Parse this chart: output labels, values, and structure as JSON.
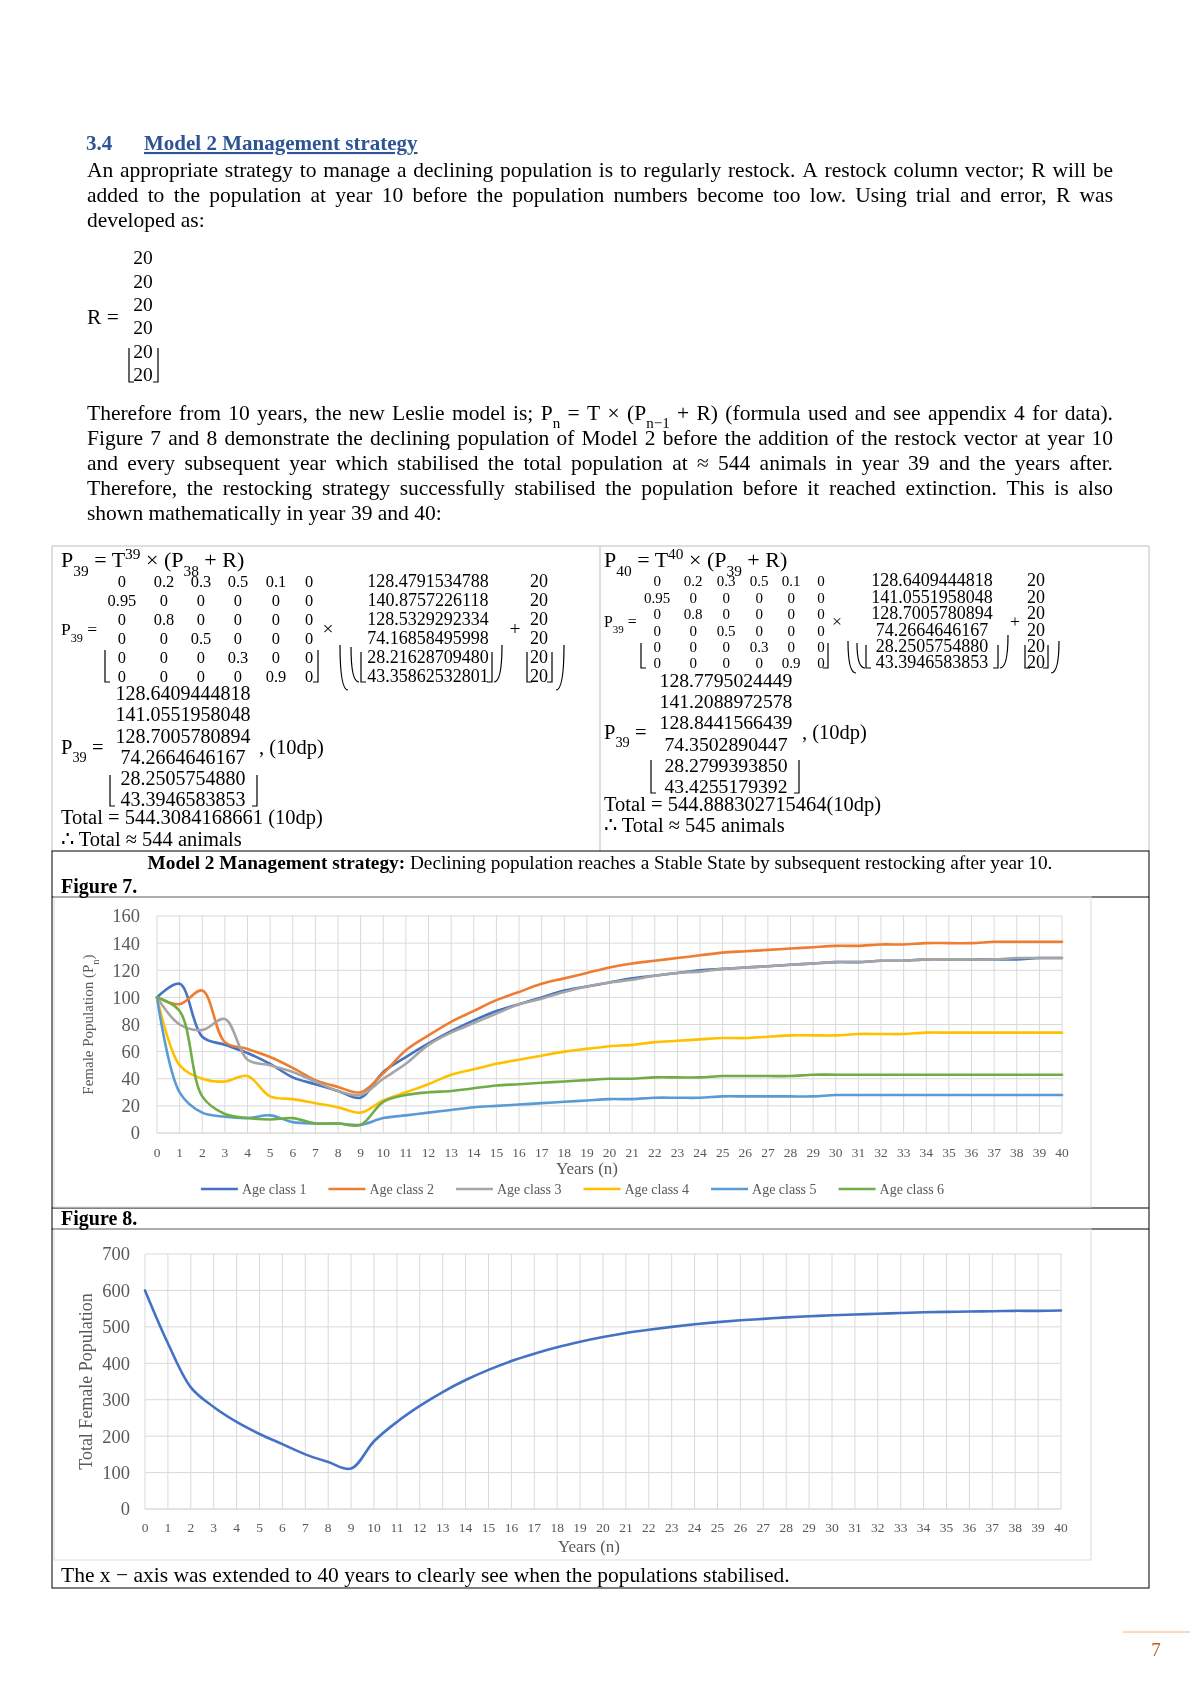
{
  "chart_data": [
    {
      "type": "line",
      "title": "Model 2 Management strategy: Declining population reaches a Stable State by subsequent restocking after year 10.",
      "subtitle": "Figure 7.",
      "xlabel": "Years (n)",
      "ylabel": "Female Population (P$_{n}$)",
      "x": [
        0,
        1,
        2,
        3,
        4,
        5,
        6,
        7,
        8,
        9,
        10,
        11,
        12,
        13,
        14,
        15,
        16,
        17,
        18,
        19,
        20,
        21,
        22,
        23,
        24,
        25,
        26,
        27,
        28,
        29,
        30,
        31,
        32,
        33,
        34,
        35,
        36,
        37,
        38,
        39,
        40
      ],
      "series": [
        {
          "name": "Age class 1",
          "color": "#4472c4",
          "values": [
            100,
            110,
            71,
            65,
            59,
            51,
            41,
            36,
            31,
            26,
            45,
            56,
            66,
            75,
            83,
            90,
            95,
            100,
            105,
            108,
            111,
            114,
            116,
            118,
            120,
            121,
            122,
            123,
            124,
            125,
            126,
            126,
            127,
            127,
            128,
            128,
            128,
            128,
            128,
            129,
            129
          ]
        },
        {
          "name": "Age class 2",
          "color": "#ed7d31",
          "values": [
            100,
            95,
            105,
            67,
            62,
            56,
            48,
            39,
            34,
            30,
            44,
            61,
            72,
            82,
            90,
            98,
            104,
            110,
            114,
            118,
            122,
            125,
            127,
            129,
            131,
            133,
            134,
            135,
            136,
            137,
            138,
            138,
            139,
            139,
            140,
            140,
            140,
            141,
            141,
            141,
            141
          ]
        },
        {
          "name": "Age class 3",
          "color": "#a5a5a5",
          "values": [
            100,
            80,
            76,
            84,
            54,
            50,
            45,
            38,
            31,
            28,
            40,
            51,
            65,
            74,
            81,
            88,
            95,
            99,
            104,
            108,
            111,
            113,
            116,
            118,
            119,
            121,
            122,
            123,
            124,
            125,
            126,
            126,
            127,
            127,
            128,
            128,
            128,
            128,
            129,
            129,
            129
          ]
        },
        {
          "name": "Age class 4",
          "color": "#ffc000",
          "values": [
            100,
            50,
            40,
            38,
            42,
            27,
            25,
            22,
            19,
            15,
            24,
            30,
            36,
            43,
            47,
            51,
            54,
            57,
            60,
            62,
            64,
            65,
            67,
            68,
            69,
            70,
            70,
            71,
            72,
            72,
            72,
            73,
            73,
            73,
            74,
            74,
            74,
            74,
            74,
            74,
            74
          ]
        },
        {
          "name": "Age class 5",
          "color": "#5b9bd5",
          "values": [
            100,
            30,
            15,
            12,
            11,
            13,
            8,
            7,
            7,
            6,
            11,
            13,
            15,
            17,
            19,
            20,
            21,
            22,
            23,
            24,
            25,
            25,
            26,
            26,
            26,
            27,
            27,
            27,
            27,
            27,
            28,
            28,
            28,
            28,
            28,
            28,
            28,
            28,
            28,
            28,
            28
          ]
        },
        {
          "name": "Age class 6",
          "color": "#70ad47",
          "values": [
            100,
            90,
            27,
            14,
            11,
            10,
            11,
            7,
            7,
            6,
            23,
            28,
            30,
            31,
            33,
            35,
            36,
            37,
            38,
            39,
            40,
            40,
            41,
            41,
            41,
            42,
            42,
            42,
            42,
            43,
            43,
            43,
            43,
            43,
            43,
            43,
            43,
            43,
            43,
            43,
            43
          ]
        }
      ],
      "xlim": [
        0,
        40
      ],
      "xticks": [
        0,
        1,
        2,
        3,
        4,
        5,
        6,
        7,
        8,
        9,
        10,
        11,
        12,
        13,
        14,
        15,
        16,
        17,
        18,
        19,
        20,
        21,
        22,
        23,
        24,
        25,
        26,
        27,
        28,
        29,
        30,
        31,
        32,
        33,
        34,
        35,
        36,
        37,
        38,
        39,
        40
      ],
      "ylim": [
        0,
        160
      ],
      "yticks": [
        0,
        20,
        40,
        60,
        80,
        100,
        120,
        140,
        160
      ],
      "grid": true,
      "legend": "bottom",
      "annotations": [
        "3.4",
        "Model 2 Management strategy",
        "An appropriate strategy to manage a declining population is to regularly restock. A restock column vector; R will be added to the population at year 10 before the population numbers become too low. Using trial and error, R was developed as:",
        "R =",
        "20",
        "20",
        "20",
        "20",
        "20",
        "20",
        "Therefore from 10 years, the new Leslie model is; P$_{n}$ = T × (P$_{n−1}$ + R) (formula used and see appendix 4 for data). Figure 7 and 8 demonstrate the declining population of Model 2 before the addition of the restock vector at year 10 and every subsequent year which stabilised the total population at ≈ 544 animals in year 39 and the years after. Therefore, the restocking strategy successfully stabilised the population before it reached extinction. This is also shown mathematically in year 39 and 40:",
        "P$_{39}$ = T$^{39}$ × (P$_{38}$ + R)",
        "P$_{39}$ =",
        "0 0.2 0.3 0.5 0.1 0",
        "0.95 0 0 0 0 0",
        "0 0.8 0 0 0 0",
        "0 0 0.5 0 0 0",
        "0 0 0 0.3 0 0",
        "0 0 0 0 0.9 0",
        "×",
        "128.4791534788",
        "140.8757226118",
        "128.5329292334",
        "74.16858495998",
        "28.21628709480",
        "43.35862532801",
        "+",
        "20",
        "20",
        "20",
        "20",
        "20",
        "20",
        "P$_{39}$ =",
        "128.6409444818",
        "141.0551958048",
        "128.7005780894",
        "74.2664646167",
        "28.2505754880",
        "43.3946583853",
        ", (10dp)",
        "Total = 544.3084168661 (10dp)",
        "∴ Total ≈ 544 animals",
        "P$_{40}$ = T$^{40}$ × (P$_{39}$ + R)",
        "P$_{39}$ =",
        "0 0.2 0.3 0.5 0.1 0",
        "0.95 0 0 0 0 0",
        "0 0.8 0 0 0 0",
        "0 0 0.5 0 0 0",
        "0 0 0 0.3 0 0",
        "0 0 0 0 0.9 0",
        "×",
        "128.6409444818",
        "141.0551958048",
        "128.7005780894",
        "74.2664646167",
        "28.2505754880",
        "43.3946583853",
        "+",
        "20",
        "20",
        "20",
        "20",
        "20",
        "20",
        "P$_{39}$ =",
        "128.7795024449",
        "141.2088972578",
        "128.8441566439",
        "74.3502890447",
        "28.2799393850",
        "43.4255179392",
        ", (10dp)",
        "Total = 544.888302715464(10dp)",
        "∴ Total ≈ 545 animals"
      ]
    },
    {
      "type": "line",
      "title": "Figure 8.",
      "xlabel": "Years (n)",
      "ylabel": "Total Female Population",
      "x": [
        0,
        1,
        2,
        3,
        4,
        5,
        6,
        7,
        8,
        9,
        10,
        11,
        12,
        13,
        14,
        15,
        16,
        17,
        18,
        19,
        20,
        21,
        22,
        23,
        24,
        25,
        26,
        27,
        28,
        29,
        30,
        31,
        32,
        33,
        34,
        35,
        36,
        37,
        38,
        39,
        40
      ],
      "series": [
        {
          "color": "#4472c4",
          "values": [
            600,
            455,
            334,
            280,
            239,
            206,
            178,
            150,
            129,
            111,
            186,
            239,
            283,
            321,
            354,
            382,
            406,
            426,
            444,
            459,
            472,
            483,
            492,
            500,
            507,
            513,
            518,
            522,
            526,
            529,
            532,
            534,
            536,
            538,
            540,
            541,
            542,
            543,
            544,
            544,
            545
          ]
        }
      ],
      "xlim": [
        0,
        40
      ],
      "xticks": [
        0,
        1,
        2,
        3,
        4,
        5,
        6,
        7,
        8,
        9,
        10,
        11,
        12,
        13,
        14,
        15,
        16,
        17,
        18,
        19,
        20,
        21,
        22,
        23,
        24,
        25,
        26,
        27,
        28,
        29,
        30,
        31,
        32,
        33,
        34,
        35,
        36,
        37,
        38,
        39,
        40
      ],
      "ylim": [
        0,
        700
      ],
      "yticks": [
        0,
        100,
        200,
        300,
        400,
        500,
        600,
        700
      ],
      "grid": true,
      "annotations": [
        "The x − axis was extended to 40 years to clearly see when the populations stabilised.",
        "7"
      ]
    }
  ]
}
